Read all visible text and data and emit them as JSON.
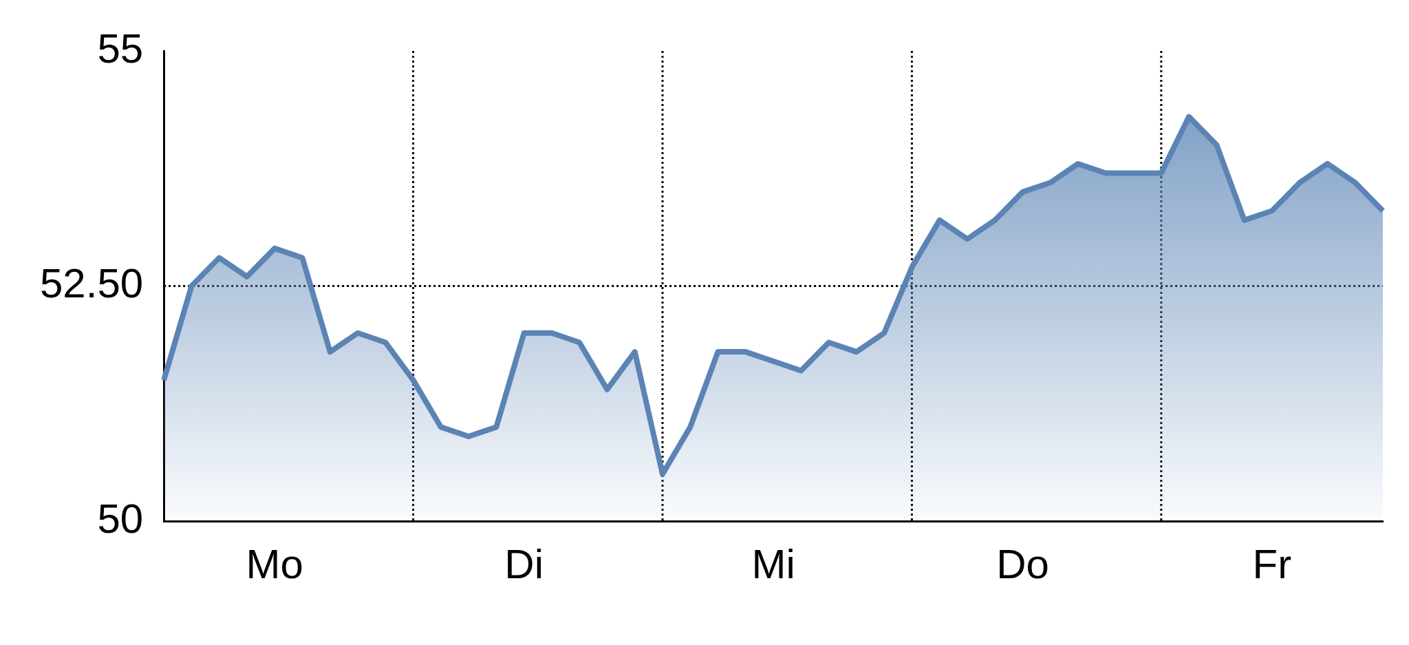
{
  "chart_data": {
    "type": "area",
    "color": "#5b84b5",
    "categories": [
      null,
      null,
      null,
      null,
      "Mo",
      null,
      null,
      null,
      null,
      null,
      null,
      null,
      null,
      "Di",
      null,
      null,
      null,
      null,
      null,
      null,
      null,
      null,
      "Mi",
      null,
      null,
      null,
      null,
      null,
      null,
      null,
      null,
      "Do",
      null,
      null,
      null,
      null,
      null,
      null,
      null,
      null,
      "Fr",
      null,
      null,
      null,
      null
    ],
    "values": [
      51.5,
      52.5,
      52.8,
      52.6,
      52.9,
      52.8,
      51.8,
      52,
      51.9,
      51.5,
      51,
      50.9,
      51,
      52,
      52,
      51.9,
      51.4,
      51.8,
      50.5,
      51,
      51.8,
      51.8,
      51.7,
      51.6,
      51.9,
      51.8,
      52,
      52.7,
      53.2,
      53,
      53.2,
      53.5,
      53.6,
      53.8,
      53.7,
      53.7,
      53.7,
      54.3,
      54,
      53.2,
      53.3,
      53.6,
      53.8,
      53.6,
      53.3
    ],
    "ylim": [
      50,
      55
    ],
    "yticks": [
      50,
      {
        "value": 52.5,
        "label": "52.50"
      },
      55
    ],
    "ref_lines": [
      {
        "axis": "y",
        "value": 52.5,
        "line_style": "dotted"
      }
    ],
    "grid": "x",
    "legend": false
  }
}
